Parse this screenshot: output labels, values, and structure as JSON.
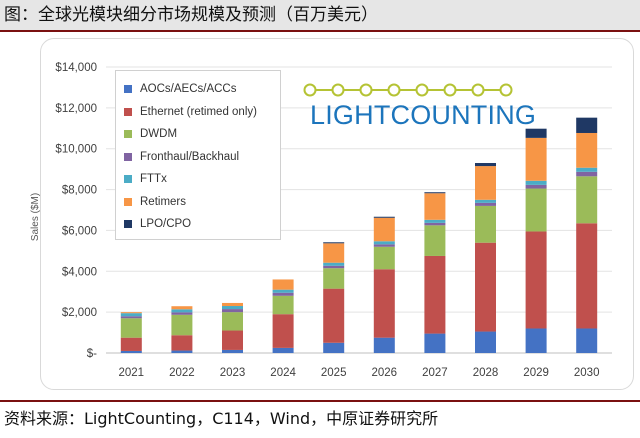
{
  "caption": "图：全球光模块细分市场规模及预测（百万美元）",
  "source": "资料来源：LightCounting，C114，Wind，中原证券研究所",
  "logo": {
    "text": "LIGHTCOUNTING"
  },
  "colors": {
    "aocs": "#4472c4",
    "ethernet": "#c0504d",
    "dwdm": "#9bbb59",
    "fronthaul": "#8064a2",
    "fttx": "#4bacc6",
    "retimers": "#f79646",
    "lpo": "#1f3864",
    "logo_dots": "#b5c334",
    "logo_text": "#1c75bc"
  },
  "chart_data": {
    "type": "bar",
    "stacked": true,
    "title": "",
    "xlabel": "",
    "ylabel": "Sales ($M)",
    "ylim": [
      0,
      14000
    ],
    "yticks": [
      0,
      2000,
      4000,
      6000,
      8000,
      10000,
      12000,
      14000
    ],
    "ytick_labels": [
      "$-",
      "$2,000",
      "$4,000",
      "$6,000",
      "$8,000",
      "$10,000",
      "$12,000",
      "$14,000"
    ],
    "grid": true,
    "legend_position": "top-left",
    "categories": [
      "2021",
      "2022",
      "2023",
      "2024",
      "2025",
      "2026",
      "2027",
      "2028",
      "2029",
      "2030"
    ],
    "series": [
      {
        "name": "AOCs/AECs/ACCs",
        "color_key": "aocs",
        "values": [
          100,
          120,
          150,
          250,
          500,
          750,
          950,
          1050,
          1200,
          1200
        ]
      },
      {
        "name": "Ethernet (retimed only)",
        "color_key": "ethernet",
        "values": [
          650,
          750,
          950,
          1650,
          2650,
          3350,
          3800,
          4350,
          4750,
          5150
        ]
      },
      {
        "name": "DWDM",
        "color_key": "dwdm",
        "values": [
          950,
          1000,
          900,
          900,
          1000,
          1100,
          1500,
          1800,
          2100,
          2300
        ]
      },
      {
        "name": "Fronthaul/Backhaul",
        "color_key": "fronthaul",
        "values": [
          100,
          120,
          150,
          150,
          120,
          120,
          120,
          150,
          180,
          220
        ]
      },
      {
        "name": "FTTx",
        "color_key": "fttx",
        "values": [
          150,
          150,
          150,
          150,
          150,
          150,
          150,
          150,
          200,
          200
        ]
      },
      {
        "name": "Retimers",
        "color_key": "retimers",
        "values": [
          50,
          150,
          150,
          500,
          950,
          1150,
          1300,
          1650,
          2100,
          1700
        ]
      },
      {
        "name": "LPO/CPO",
        "color_key": "lpo",
        "values": [
          0,
          0,
          0,
          0,
          50,
          50,
          50,
          150,
          450,
          750
        ]
      }
    ]
  }
}
